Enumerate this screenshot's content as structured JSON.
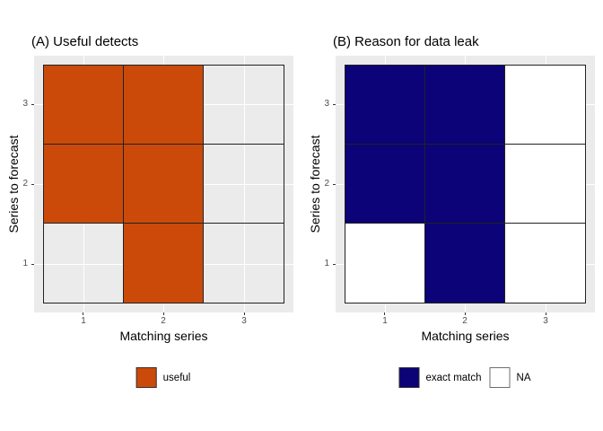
{
  "chart_data": [
    {
      "type": "heatmap",
      "panel_tag": "A",
      "title": "(A) Useful detects",
      "xlabel": "Matching series",
      "ylabel": "Series to forecast",
      "x_ticks": [
        "1",
        "2",
        "3"
      ],
      "y_ticks": [
        "3",
        "2",
        "1"
      ],
      "x_range": [
        0.5,
        3.5
      ],
      "y_range": [
        0.5,
        3.5
      ],
      "grid": true,
      "legend_position": "bottom",
      "rows_top_to_bottom": [
        [
          "useful",
          "useful",
          null
        ],
        [
          "useful",
          "useful",
          null
        ],
        [
          null,
          "useful",
          null
        ]
      ],
      "fills": {
        "useful": "#CB4A09"
      },
      "na_fill": "transparent",
      "legend": [
        {
          "label": "useful",
          "color": "#CB4A09",
          "border": "#333333"
        }
      ]
    },
    {
      "type": "heatmap",
      "panel_tag": "B",
      "title": "(B) Reason for data leak",
      "xlabel": "Matching series",
      "ylabel": "Series to forecast",
      "x_ticks": [
        "1",
        "2",
        "3"
      ],
      "y_ticks": [
        "3",
        "2",
        "1"
      ],
      "x_range": [
        0.5,
        3.5
      ],
      "y_range": [
        0.5,
        3.5
      ],
      "grid": true,
      "legend_position": "bottom",
      "rows_top_to_bottom": [
        [
          "exact match",
          "exact match",
          "NA"
        ],
        [
          "exact match",
          "exact match",
          "NA"
        ],
        [
          "NA",
          "exact match",
          "NA"
        ]
      ],
      "fills": {
        "exact match": "#0B0377",
        "NA": "#FFFFFF"
      },
      "na_fill": "transparent",
      "legend": [
        {
          "label": "exact match",
          "color": "#0B0377",
          "border": "#333333"
        },
        {
          "label": "NA",
          "color": "#FFFFFF",
          "border": "#6E6E6E"
        }
      ]
    }
  ]
}
